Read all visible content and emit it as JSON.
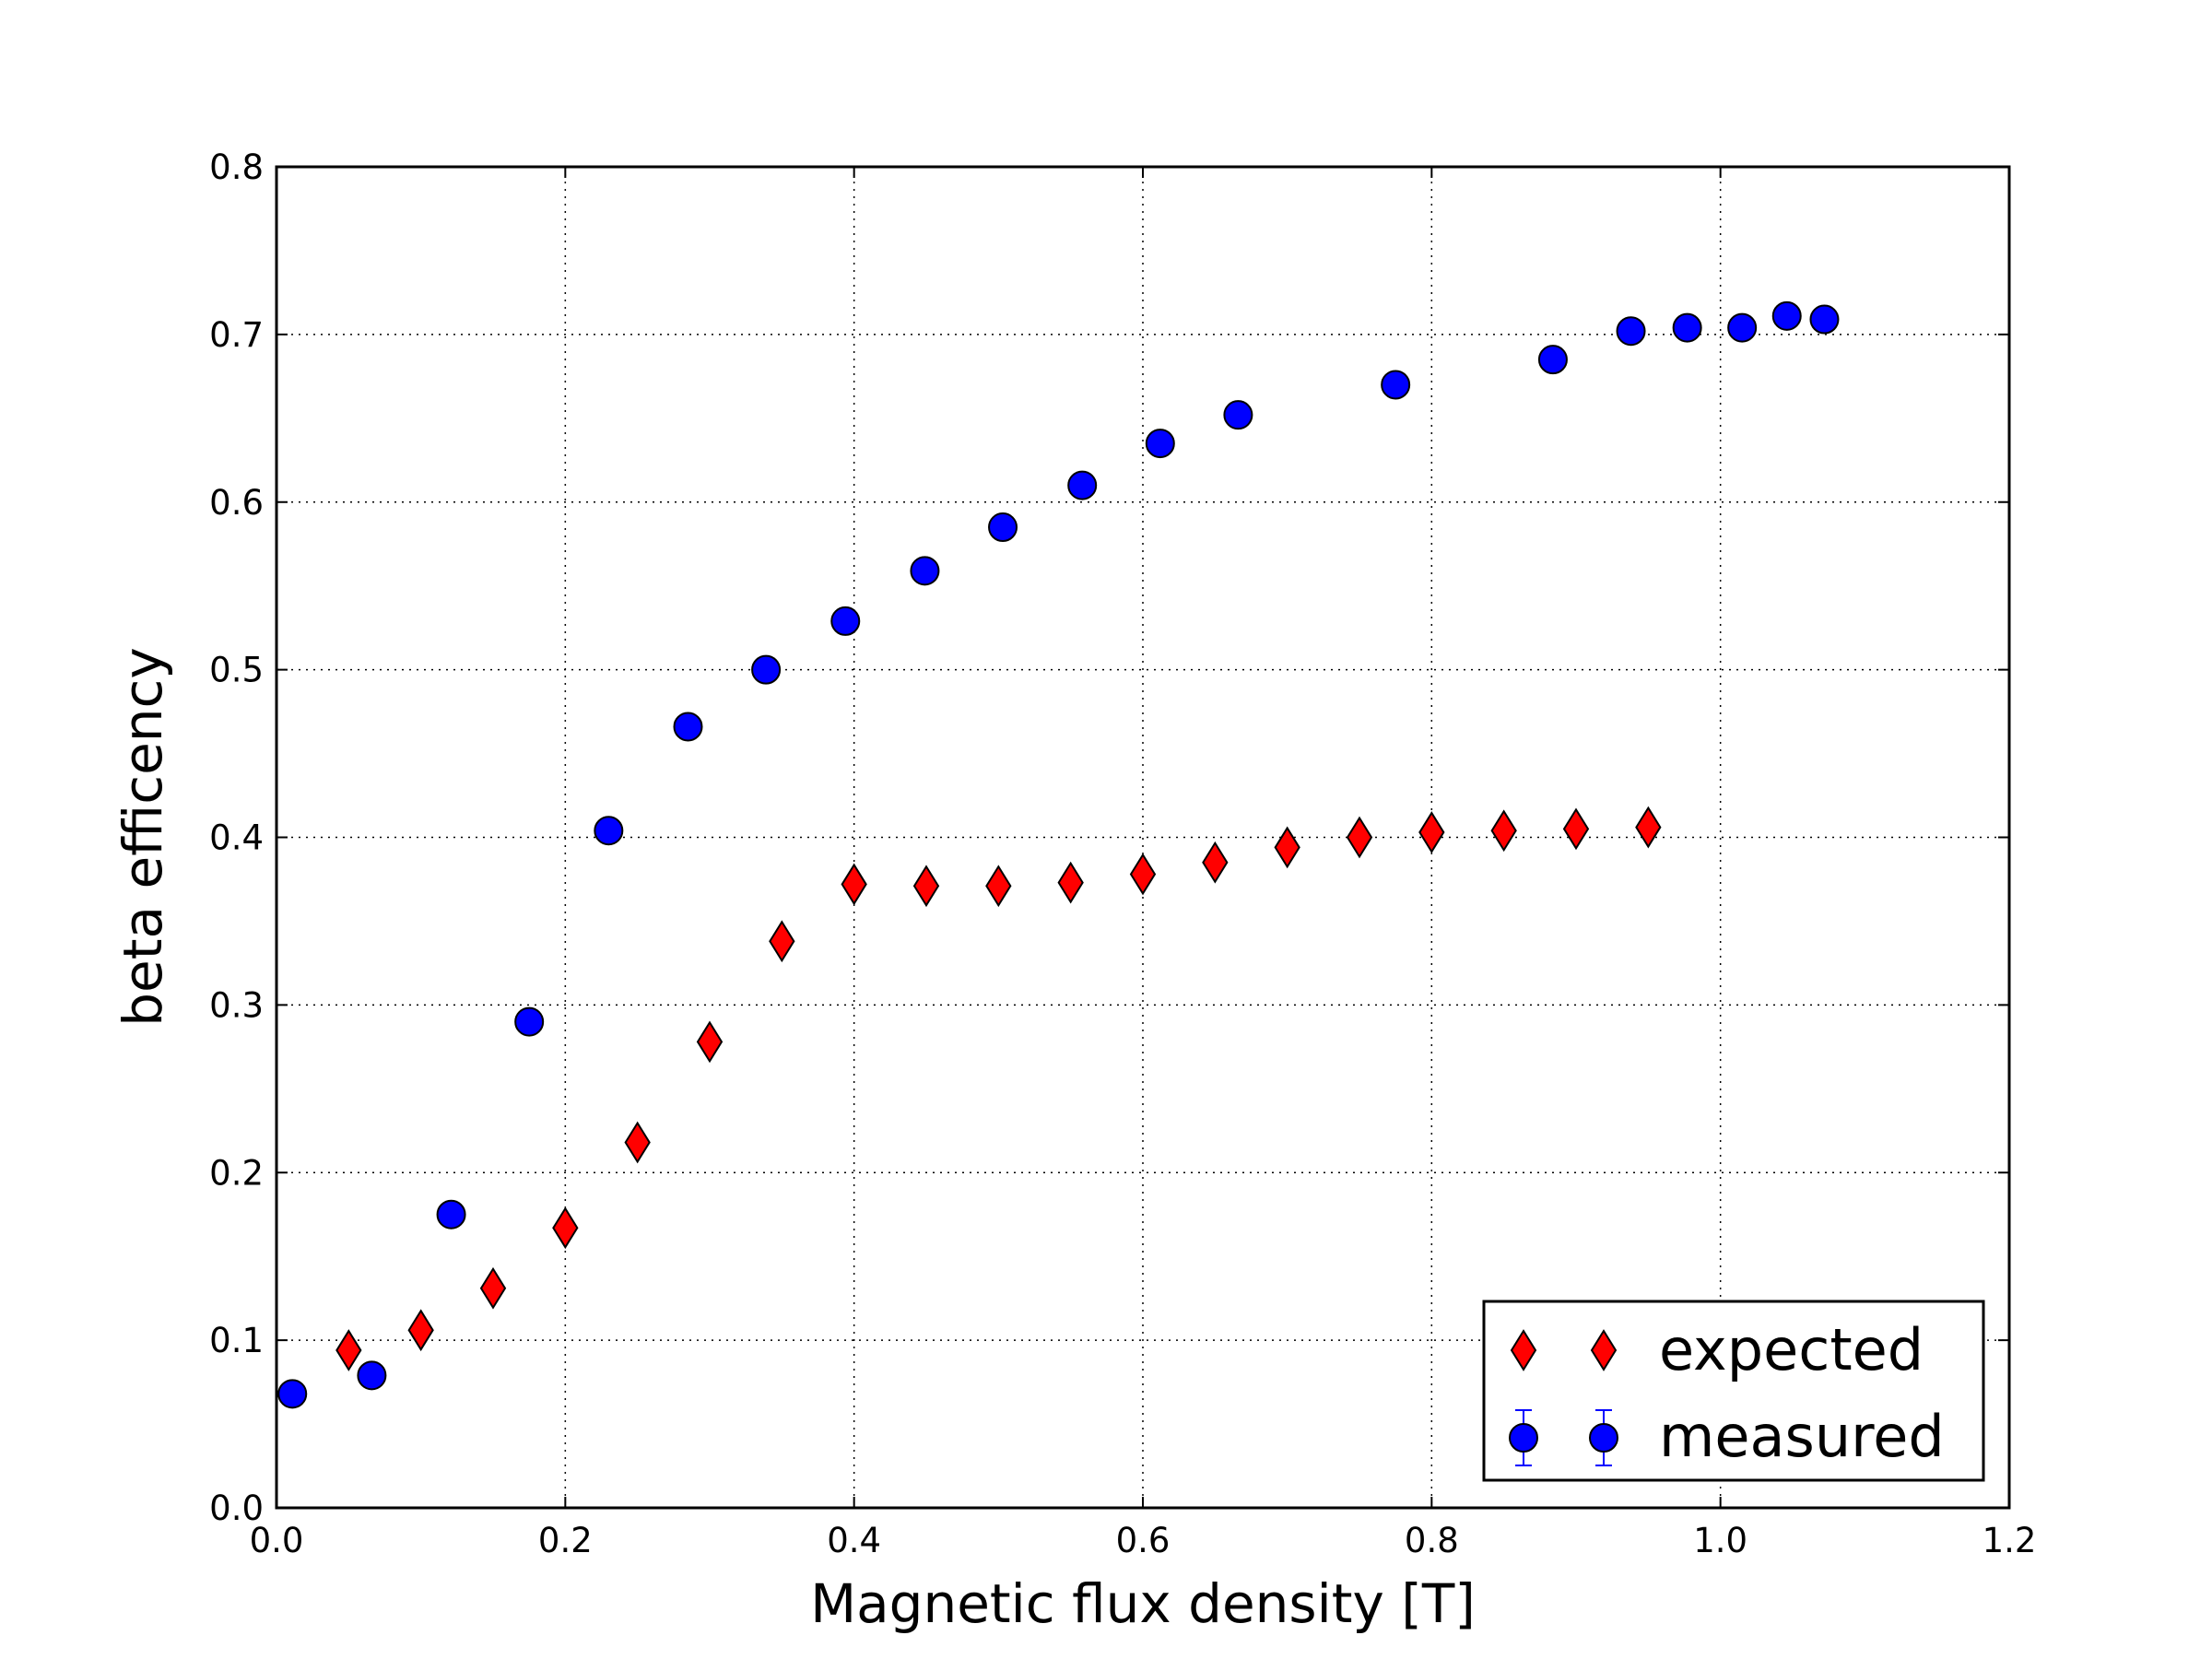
{
  "chart_data": {
    "type": "scatter",
    "title": "",
    "xlabel": "Magnetic flux density [T]",
    "ylabel": "beta efficency",
    "xlim": [
      0.0,
      1.2
    ],
    "ylim": [
      0.0,
      0.8
    ],
    "xticks": [
      "0.0",
      "0.2",
      "0.4",
      "0.6",
      "0.8",
      "1.0",
      "1.2"
    ],
    "yticks": [
      "0.0",
      "0.1",
      "0.2",
      "0.3",
      "0.4",
      "0.5",
      "0.6",
      "0.7",
      "0.8"
    ],
    "grid": true,
    "legend_position": "lower-right",
    "series": [
      {
        "name": "expected",
        "marker": "diamond",
        "color": "#ff0000",
        "x": [
          0.05,
          0.1,
          0.15,
          0.2,
          0.25,
          0.3,
          0.35,
          0.4,
          0.45,
          0.5,
          0.55,
          0.6,
          0.65,
          0.7,
          0.75,
          0.8,
          0.85,
          0.9,
          0.95
        ],
        "y": [
          0.094,
          0.106,
          0.131,
          0.167,
          0.218,
          0.278,
          0.338,
          0.372,
          0.371,
          0.371,
          0.373,
          0.378,
          0.385,
          0.394,
          0.4,
          0.403,
          0.404,
          0.405,
          0.406
        ]
      },
      {
        "name": "measured",
        "marker": "circle",
        "color": "#0000ff",
        "x": [
          0.011,
          0.066,
          0.121,
          0.175,
          0.23,
          0.285,
          0.339,
          0.394,
          0.449,
          0.503,
          0.558,
          0.612,
          0.666,
          0.775,
          0.884,
          0.938,
          0.977,
          1.015,
          1.046,
          1.072
        ],
        "y": [
          0.068,
          0.079,
          0.175,
          0.29,
          0.404,
          0.466,
          0.5,
          0.529,
          0.559,
          0.585,
          0.61,
          0.635,
          0.652,
          0.67,
          0.685,
          0.702,
          0.704,
          0.704,
          0.711,
          0.709
        ]
      }
    ]
  }
}
